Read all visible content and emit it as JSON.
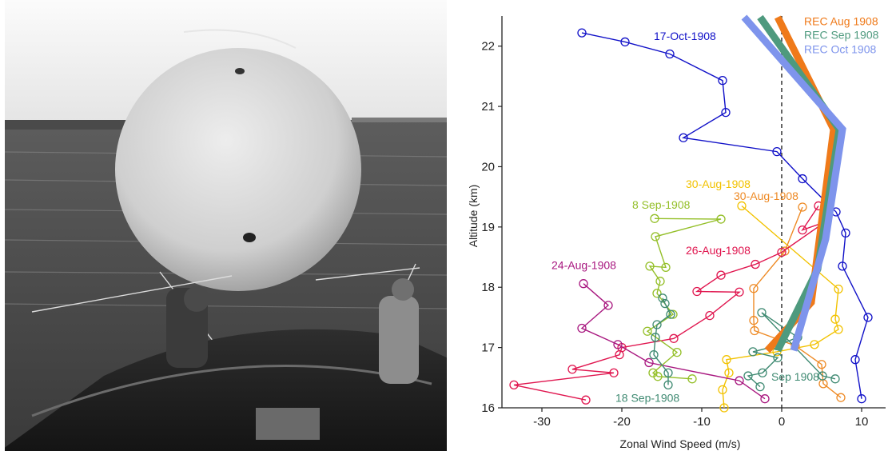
{
  "chart_data": {
    "type": "line",
    "xlabel": "Zonal Wind Speed (m/s)",
    "ylabel": "Altitude (km)",
    "xlim": [
      -35,
      13
    ],
    "ylim": [
      16,
      22.5
    ],
    "xticks": [
      -30,
      -20,
      -10,
      0,
      10
    ],
    "yticks": [
      16,
      17,
      18,
      19,
      20,
      21,
      22
    ],
    "zero_line": "dashed vertical at 0",
    "grid": false,
    "series": [
      {
        "name": "17-Oct-1908",
        "color": "#1010c8",
        "label_pos": [
          -16,
          22.1
        ],
        "points": [
          [
            10,
            16.15
          ],
          [
            9.2,
            16.8
          ],
          [
            10.8,
            17.5
          ],
          [
            7.6,
            18.35
          ],
          [
            8,
            18.9
          ],
          [
            6.8,
            19.25
          ],
          [
            2.6,
            19.8
          ],
          [
            -0.6,
            20.25
          ],
          [
            -12.3,
            20.48
          ],
          [
            -7,
            20.9
          ],
          [
            -7.4,
            21.43
          ],
          [
            -14,
            21.87
          ],
          [
            -19.6,
            22.07
          ],
          [
            -25,
            22.22
          ]
        ]
      },
      {
        "name": "30-Aug-1908",
        "color": "#f2c200",
        "label_pos": [
          -12,
          19.65
        ],
        "points": [
          [
            -7.2,
            16
          ],
          [
            -7.4,
            16.3
          ],
          [
            -6.6,
            16.58
          ],
          [
            -6.9,
            16.8
          ],
          [
            -0.6,
            16.93
          ],
          [
            4.1,
            17.05
          ],
          [
            7.1,
            17.3
          ],
          [
            6.7,
            17.47
          ],
          [
            7.1,
            17.97
          ],
          [
            -5,
            19.35
          ]
        ]
      },
      {
        "name": "30-Aug-1908",
        "color": "#ee8a25",
        "label_pos": [
          -6,
          19.45
        ],
        "points": [
          [
            7.4,
            16.17
          ],
          [
            5.2,
            16.4
          ],
          [
            5,
            16.72
          ],
          [
            1.7,
            17.03
          ],
          [
            -3.4,
            17.28
          ],
          [
            -3.5,
            17.45
          ],
          [
            -3.5,
            17.98
          ],
          [
            0.4,
            18.6
          ],
          [
            2.6,
            19.33
          ]
        ]
      },
      {
        "name": "26-Aug-1908",
        "color": "#e0164f",
        "label_pos": [
          -12,
          18.55
        ],
        "points": [
          [
            -24.5,
            16.13
          ],
          [
            -33.5,
            16.38
          ],
          [
            -21,
            16.58
          ],
          [
            -26.2,
            16.64
          ],
          [
            -20.3,
            16.88
          ],
          [
            -20,
            17
          ],
          [
            -13.5,
            17.15
          ],
          [
            -9,
            17.53
          ],
          [
            -5.3,
            17.92
          ],
          [
            -10.6,
            17.93
          ],
          [
            -7.6,
            18.2
          ],
          [
            -3.3,
            18.38
          ],
          [
            0,
            18.58
          ],
          [
            5.4,
            19.08
          ],
          [
            2.6,
            18.95
          ],
          [
            4.6,
            19.35
          ]
        ]
      },
      {
        "name": "24-Aug-1908",
        "color": "#a8177f",
        "label_pos": [
          -28.8,
          18.3
        ],
        "points": [
          [
            -2.1,
            16.15
          ],
          [
            -5.3,
            16.45
          ],
          [
            -16.6,
            16.75
          ],
          [
            -20.5,
            17.05
          ],
          [
            -25,
            17.32
          ],
          [
            -21.7,
            17.7
          ],
          [
            -24.8,
            18.06
          ]
        ]
      },
      {
        "name": "8 Sep-1908",
        "color": "#94bf28",
        "label_pos": [
          -18.7,
          19.3
        ],
        "points": [
          [
            -11.2,
            16.48
          ],
          [
            -15.5,
            16.52
          ],
          [
            -16.1,
            16.58
          ],
          [
            -13.1,
            16.92
          ],
          [
            -16.8,
            17.27
          ],
          [
            -13.6,
            17.55
          ],
          [
            -15.6,
            17.9
          ],
          [
            -15.2,
            18.1
          ],
          [
            -16.5,
            18.35
          ],
          [
            -14.5,
            18.33
          ],
          [
            -15.8,
            18.84
          ],
          [
            -7.6,
            19.13
          ],
          [
            -15.9,
            19.14
          ]
        ]
      },
      {
        "name": "18 Sep-1908",
        "color": "#3f8a72",
        "label_pos": [
          -20.8,
          16.1
        ],
        "points": [
          [
            -14.2,
            16.38
          ],
          [
            -14.2,
            16.58
          ],
          [
            -16,
            16.88
          ],
          [
            -15.8,
            17.17
          ],
          [
            -15.6,
            17.38
          ],
          [
            -13.9,
            17.55
          ],
          [
            -14.6,
            17.73
          ],
          [
            -14.9,
            17.82
          ]
        ]
      },
      {
        "name": "Sep 1908",
        "color": "#3f8a72",
        "label_pos": [
          -1.3,
          16.45
        ],
        "points": [
          [
            -2.7,
            16.35
          ],
          [
            -4.2,
            16.53
          ],
          [
            -2.4,
            16.58
          ],
          [
            -0.5,
            16.83
          ],
          [
            -3.6,
            16.93
          ],
          [
            -0.6,
            17.03
          ],
          [
            2,
            17.17
          ],
          [
            -2.5,
            17.58
          ],
          [
            5.1,
            16.53
          ],
          [
            6.7,
            16.48
          ]
        ]
      },
      {
        "name": "REC Aug 1908",
        "color": "#ef7a1a",
        "width": 9,
        "label_pos": [
          2.8,
          22.35
        ],
        "points": [
          [
            -1.8,
            16.95
          ],
          [
            3.7,
            17.75
          ],
          [
            6.5,
            20.62
          ],
          [
            -0.5,
            22.48
          ]
        ]
      },
      {
        "name": "REC Sep 1908",
        "color": "#4e9a7e",
        "width": 9,
        "label_pos": [
          2.8,
          22.12
        ],
        "points": [
          [
            -0.5,
            16.95
          ],
          [
            4.5,
            18.3
          ],
          [
            7.2,
            20.62
          ],
          [
            -2.7,
            22.48
          ]
        ]
      },
      {
        "name": "REC Oct 1908",
        "color": "#7e94ec",
        "width": 9,
        "label_pos": [
          2.8,
          21.88
        ],
        "points": [
          [
            1.5,
            16.95
          ],
          [
            5.5,
            18.8
          ],
          [
            7.6,
            20.62
          ],
          [
            -4.7,
            22.48
          ]
        ]
      }
    ]
  }
}
